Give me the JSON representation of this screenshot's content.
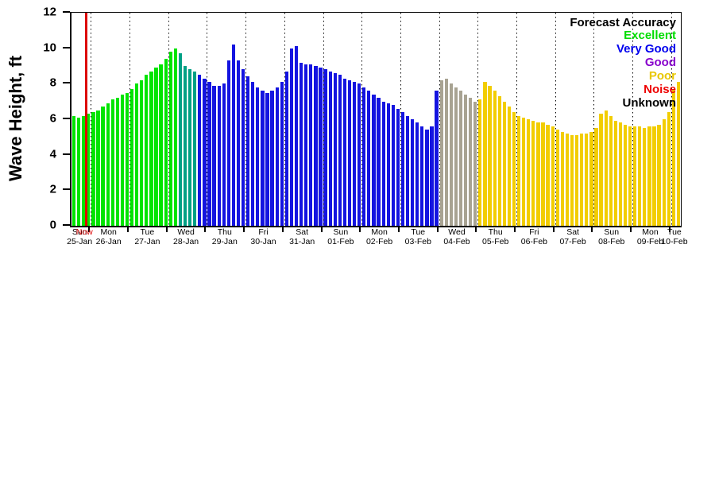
{
  "chart_data": {
    "type": "bar",
    "title": "",
    "ylabel": "Wave Height, ft",
    "xlabel": "",
    "ylim": [
      0,
      12
    ],
    "yticks": [
      0,
      2,
      4,
      6,
      8,
      10,
      12
    ],
    "grid": "vertical-dotted-day-boundaries",
    "legend": {
      "position": "top-right-inside",
      "title": "Forecast Accuracy",
      "entries": [
        {
          "label": "Excellent",
          "color": "#00dd00"
        },
        {
          "label": "Very Good",
          "color": "#0000ee"
        },
        {
          "label": "Good",
          "color": "#8800cc"
        },
        {
          "label": "Poor",
          "color": "#e8c700"
        },
        {
          "label": "Noise",
          "color": "#ee0000"
        },
        {
          "label": "Unknown",
          "color": "#000000"
        }
      ]
    },
    "now_marker": {
      "label": "Now",
      "bar_index": 3,
      "color": "#dd0000"
    },
    "palette": {
      "g": "#00e400",
      "t": "#00a085",
      "b": "#1414e0",
      "n": "#a8a392",
      "y": "#f2cd00"
    },
    "days": [
      {
        "day": "Sun",
        "date": "25-Jan",
        "values": [
          6.2,
          6.1,
          6.2,
          6.3
        ],
        "colors": "gggg"
      },
      {
        "day": "Mon",
        "date": "26-Jan",
        "values": [
          6.4,
          6.5,
          6.7,
          6.9,
          7.1,
          7.2,
          7.4,
          7.5
        ],
        "colors": "gggggggg"
      },
      {
        "day": "Tue",
        "date": "27-Jan",
        "values": [
          7.7,
          8.0,
          8.2,
          8.5,
          8.7,
          8.9,
          9.1,
          9.4
        ],
        "colors": "gggggggg"
      },
      {
        "day": "Wed",
        "date": "28-Jan",
        "values": [
          9.8,
          10.0,
          9.7,
          9.0,
          8.8,
          8.7,
          8.5,
          8.3
        ],
        "colors": "ggttttbb"
      },
      {
        "day": "Thu",
        "date": "29-Jan",
        "values": [
          8.1,
          7.9,
          7.9,
          8.0,
          9.3,
          10.2,
          9.3,
          8.8
        ],
        "colors": "bbbbbbbb"
      },
      {
        "day": "Fri",
        "date": "30-Jan",
        "values": [
          8.4,
          8.1,
          7.8,
          7.6,
          7.5,
          7.6,
          7.8,
          8.1
        ],
        "colors": "bbbbbbbb"
      },
      {
        "day": "Sat",
        "date": "31-Jan",
        "values": [
          8.7,
          10.0,
          10.1,
          9.2,
          9.1,
          9.1,
          9.0,
          8.9
        ],
        "colors": "bbbbbbbb"
      },
      {
        "day": "Sun",
        "date": "01-Feb",
        "values": [
          8.8,
          8.7,
          8.6,
          8.5,
          8.3,
          8.2,
          8.1,
          8.0
        ],
        "colors": "bbbbbbbb"
      },
      {
        "day": "Mon",
        "date": "02-Feb",
        "values": [
          7.8,
          7.6,
          7.4,
          7.2,
          7.0,
          6.9,
          6.8,
          6.6
        ],
        "colors": "bbbbbbbb"
      },
      {
        "day": "Tue",
        "date": "03-Feb",
        "values": [
          6.4,
          6.2,
          6.0,
          5.8,
          5.6,
          5.4,
          5.6,
          7.6
        ],
        "colors": "bbbbbbbb"
      },
      {
        "day": "Wed",
        "date": "04-Feb",
        "values": [
          8.2,
          8.3,
          8.0,
          7.8,
          7.6,
          7.4,
          7.2,
          7.0
        ],
        "colors": "nnnnnnnn"
      },
      {
        "day": "Thu",
        "date": "05-Feb",
        "values": [
          7.1,
          8.1,
          7.9,
          7.6,
          7.3,
          7.0,
          6.7,
          6.4
        ],
        "colors": "yyyyyyyy"
      },
      {
        "day": "Fri",
        "date": "06-Feb",
        "values": [
          6.2,
          6.1,
          6.0,
          5.9,
          5.8,
          5.8,
          5.7,
          5.6
        ],
        "colors": "yyyyyyyy"
      },
      {
        "day": "Sat",
        "date": "07-Feb",
        "values": [
          5.4,
          5.3,
          5.2,
          5.1,
          5.1,
          5.2,
          5.2,
          5.3
        ],
        "colors": "yyyyyyyy"
      },
      {
        "day": "Sun",
        "date": "08-Feb",
        "values": [
          5.5,
          6.3,
          6.5,
          6.2,
          5.9,
          5.8,
          5.7,
          5.6
        ],
        "colors": "yyyyyyyy"
      },
      {
        "day": "Mon",
        "date": "09-Feb",
        "values": [
          5.6,
          5.6,
          5.5,
          5.6,
          5.6,
          5.7,
          6.0,
          6.4
        ],
        "colors": "yyyyyyyy"
      },
      {
        "day": "Tue",
        "date": "10-Feb",
        "values": [
          7.7,
          8.1
        ],
        "colors": "yy"
      }
    ]
  }
}
